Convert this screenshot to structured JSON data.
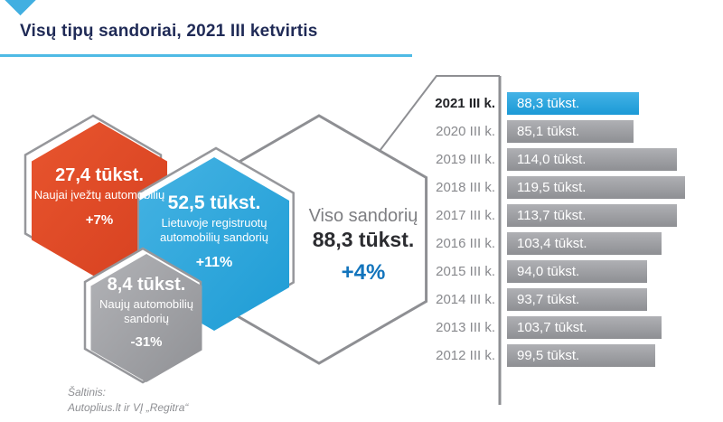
{
  "header": {
    "title": "Visų tipų sandoriai, 2021 III ketvirtis"
  },
  "hexagons": {
    "items": [
      {
        "id": "red",
        "value": "27,4 tūkst.",
        "label": "Naujai įvežtų automobilių",
        "change": "+7%",
        "color": "#E0482A"
      },
      {
        "id": "blue",
        "value": "52,5 tūkst.",
        "label": "Lietuvoje registruotų automobilių sandorių",
        "change": "+11%",
        "color": "#2FA5DC"
      },
      {
        "id": "gray",
        "value": "8,4 tūkst.",
        "label": "Naujų automobilių sandorių",
        "change": "-31%",
        "color": "#9FA0A4"
      }
    ],
    "total": {
      "caption": "Viso sandorių",
      "value": "88,3 tūkst.",
      "change": "+4%",
      "change_color": "#1274BC"
    }
  },
  "chart_data": {
    "type": "bar",
    "orientation": "horizontal",
    "categories": [
      "2021 III k.",
      "2020 III k.",
      "2019 III k.",
      "2018 III k.",
      "2017 III k.",
      "2016 III k.",
      "2015 III k.",
      "2014 III k.",
      "2013 III k.",
      "2012 III k."
    ],
    "values": [
      88.3,
      85.1,
      114.0,
      119.5,
      113.7,
      103.4,
      94.0,
      93.7,
      103.7,
      99.5
    ],
    "value_labels": [
      "88,3 tūkst.",
      "85,1 tūkst.",
      "114,0 tūkst.",
      "119,5 tūkst.",
      "113,7 tūkst.",
      "103,4 tūkst.",
      "94,0 tūkst.",
      "93,7 tūkst.",
      "103,7 tūkst.",
      "99,5 tūkst."
    ],
    "highlight_index": 0,
    "highlight_color": "#2FA5DC",
    "bar_color": "#9B9CA0",
    "unit": "tūkst.",
    "xlim": [
      0,
      125
    ],
    "legend": false,
    "grid": false
  },
  "source": {
    "line1": "Šaltinis:",
    "line2": "Autoplius.lt ir VĮ „Regitra“"
  },
  "colors": {
    "title_navy": "#1F2A56",
    "accent_blue_line": "#4FBAE5",
    "outline_gray": "#96979B"
  }
}
